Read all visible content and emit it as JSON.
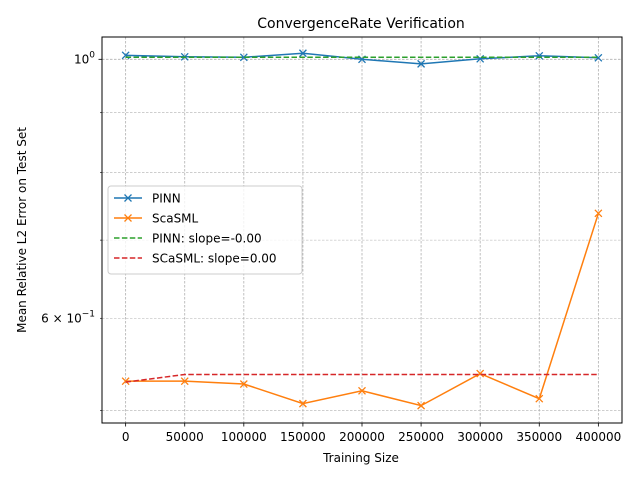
{
  "chart_data": {
    "type": "line",
    "title": "ConvergenceRate Verification",
    "xlabel": "Training Size",
    "ylabel": "Mean Relative L2 Error on Test Set",
    "yscale": "log",
    "xlim": [
      -20000,
      420000
    ],
    "ylim": [
      0.488,
      1.045
    ],
    "grid": true,
    "legend_position": "center-left",
    "x": [
      0,
      50000,
      100000,
      150000,
      200000,
      250000,
      300000,
      350000,
      400000
    ],
    "x_tick_labels": [
      "0",
      "50000",
      "100000",
      "150000",
      "200000",
      "250000",
      "300000",
      "350000",
      "400000"
    ],
    "y_tick_labels": [
      {
        "value": 1.0,
        "base": "10",
        "exp": "0"
      },
      {
        "value": 0.6,
        "base": "6 × 10",
        "exp": "−1"
      }
    ],
    "series": [
      {
        "name": "PINN",
        "style": "solid",
        "marker": "x",
        "color": "#1f77b4",
        "values": [
          1.008,
          1.005,
          1.004,
          1.012,
          1.0,
          0.991,
          1.001,
          1.007,
          1.003
        ]
      },
      {
        "name": "ScaSML",
        "style": "solid",
        "marker": "x",
        "color": "#ff7f0e",
        "values": [
          0.53,
          0.53,
          0.527,
          0.507,
          0.52,
          0.505,
          0.538,
          0.512,
          0.738
        ]
      },
      {
        "name": "PINN: slope=-0.00",
        "style": "dashed",
        "marker": "none",
        "color": "#2ca02c",
        "values": [
          1.004,
          1.004,
          1.004,
          1.004,
          1.004,
          1.004,
          1.004,
          1.004,
          1.004
        ]
      },
      {
        "name": "SCaSML: slope=0.00",
        "style": "dashed",
        "marker": "none",
        "color": "#d62728",
        "values": [
          0.529,
          0.537,
          0.537,
          0.537,
          0.537,
          0.537,
          0.537,
          0.537,
          0.537
        ]
      }
    ]
  }
}
